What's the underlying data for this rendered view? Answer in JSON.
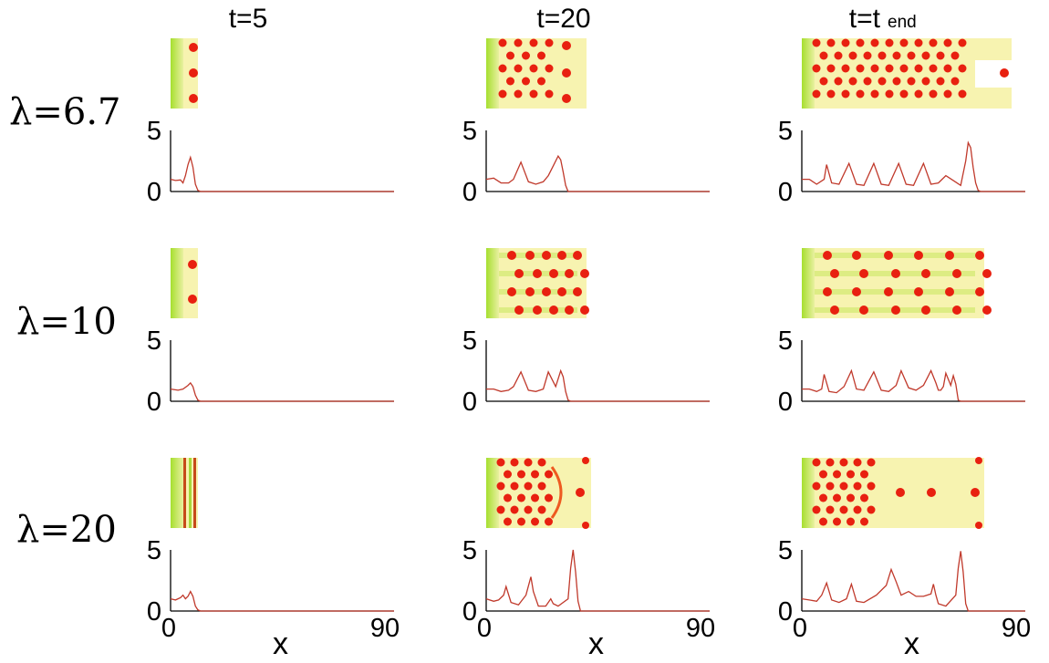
{
  "figure": {
    "column_titles": [
      {
        "text": "t=5"
      },
      {
        "text": "t=20"
      },
      {
        "text": "t=t",
        "subscript": "end"
      }
    ],
    "row_labels": [
      "λ=6.7",
      "λ=10",
      "λ=20"
    ],
    "colors": {
      "background": "#b8e84a",
      "field": "#f7f3b0",
      "spot": "#e82010",
      "curve": "#c0392b",
      "axis": "#000000"
    }
  },
  "chart_data": [
    {
      "type": "line",
      "row": "λ=6.7",
      "column": "t=5",
      "ylim": [
        0,
        5
      ],
      "yticks": [
        "0",
        "5"
      ],
      "xlim": [
        0,
        90
      ],
      "xticks": [],
      "x": [
        0,
        2,
        4,
        5,
        6,
        7,
        8,
        9,
        10,
        11,
        12,
        90
      ],
      "y": [
        1,
        0.9,
        0.95,
        0.7,
        1.3,
        2.2,
        2.8,
        2.0,
        0.6,
        0.1,
        0,
        0
      ]
    },
    {
      "type": "line",
      "row": "λ=6.7",
      "column": "t=20",
      "ylim": [
        0,
        5
      ],
      "yticks": [
        "0",
        "5"
      ],
      "xlim": [
        0,
        90
      ],
      "xticks": [],
      "x": [
        0,
        3,
        6,
        9,
        11,
        14,
        17,
        20,
        23,
        25,
        27,
        29,
        30,
        31,
        32,
        33,
        90
      ],
      "y": [
        1,
        1.1,
        0.7,
        0.7,
        1.0,
        2.4,
        0.8,
        0.6,
        0.8,
        1.3,
        2.1,
        2.9,
        2.6,
        1.6,
        0.5,
        0,
        0
      ]
    },
    {
      "type": "line",
      "row": "λ=6.7",
      "column": "t=t end",
      "ylim": [
        0,
        5
      ],
      "yticks": [
        "0",
        "5"
      ],
      "xlim": [
        0,
        90
      ],
      "xticks": [],
      "x": [
        0,
        3,
        6,
        9,
        10,
        12,
        15,
        19,
        22,
        25,
        29,
        32,
        35,
        39,
        42,
        45,
        49,
        52,
        55,
        58,
        61,
        64,
        66,
        67,
        68,
        69,
        70,
        71,
        72,
        90
      ],
      "y": [
        1,
        1.0,
        0.6,
        1.0,
        2.2,
        0.7,
        0.6,
        2.3,
        0.6,
        0.5,
        2.3,
        0.6,
        0.5,
        2.3,
        0.6,
        0.5,
        2.3,
        0.6,
        0.7,
        1.3,
        0.9,
        0.5,
        2.5,
        4.0,
        3.6,
        2.0,
        0.7,
        0.1,
        0,
        0
      ]
    },
    {
      "type": "line",
      "row": "λ=10",
      "column": "t=5",
      "ylim": [
        0,
        5
      ],
      "yticks": [
        "0",
        "5"
      ],
      "xlim": [
        0,
        90
      ],
      "xticks": [],
      "x": [
        0,
        3,
        5,
        7,
        8,
        9,
        10,
        11,
        12,
        90
      ],
      "y": [
        1,
        0.9,
        1.0,
        1.3,
        1.5,
        1.2,
        0.5,
        0.1,
        0,
        0
      ]
    },
    {
      "type": "line",
      "row": "λ=10",
      "column": "t=20",
      "ylim": [
        0,
        5
      ],
      "yticks": [
        "0",
        "5"
      ],
      "xlim": [
        0,
        90
      ],
      "xticks": [],
      "x": [
        0,
        3,
        6,
        9,
        11,
        14,
        17,
        20,
        23,
        25,
        26,
        28,
        30,
        31,
        32,
        33,
        34,
        90
      ],
      "y": [
        1,
        1.0,
        0.8,
        0.9,
        1.2,
        2.4,
        0.9,
        0.8,
        1.0,
        2.4,
        2.0,
        1.2,
        2.5,
        2.0,
        0.8,
        0.1,
        0,
        0
      ]
    },
    {
      "type": "line",
      "row": "λ=10",
      "column": "t=t end",
      "ylim": [
        0,
        5
      ],
      "yticks": [
        "0",
        "5"
      ],
      "xlim": [
        0,
        90
      ],
      "xticks": [],
      "x": [
        0,
        3,
        6,
        8,
        9,
        11,
        14,
        17,
        20,
        22,
        25,
        29,
        32,
        35,
        38,
        40,
        43,
        46,
        49,
        52,
        54,
        55,
        56,
        57,
        58,
        59,
        60,
        61,
        62,
        63,
        64,
        90
      ],
      "y": [
        1,
        1.0,
        0.8,
        1.0,
        2.2,
        0.8,
        0.7,
        1.2,
        2.5,
        1.0,
        0.9,
        2.4,
        0.9,
        0.8,
        1.3,
        2.5,
        1.1,
        0.9,
        1.3,
        2.5,
        1.5,
        0.9,
        0.9,
        1.2,
        2.3,
        1.8,
        1.3,
        2.1,
        1.4,
        0.1,
        0,
        0
      ]
    },
    {
      "type": "line",
      "row": "λ=20",
      "column": "t=5",
      "ylim": [
        0,
        5
      ],
      "yticks": [
        "0",
        "5"
      ],
      "xlim": [
        0,
        90
      ],
      "xticks": [
        "0",
        "90"
      ],
      "xlabel": "x",
      "x": [
        0,
        2,
        4,
        5,
        6,
        7,
        8,
        9,
        10,
        11,
        12,
        90
      ],
      "y": [
        1,
        0.9,
        1.1,
        1.3,
        1.0,
        1.2,
        1.6,
        1.2,
        0.4,
        0.1,
        0,
        0
      ]
    },
    {
      "type": "line",
      "row": "λ=20",
      "column": "t=20",
      "ylim": [
        0,
        5
      ],
      "yticks": [
        "0",
        "5"
      ],
      "xlim": [
        0,
        90
      ],
      "xticks": [
        "0",
        "90"
      ],
      "xlabel": "x",
      "x": [
        0,
        3,
        5,
        7,
        8,
        10,
        13,
        16,
        18,
        19,
        21,
        24,
        26,
        27,
        29,
        33,
        34,
        35,
        36,
        37,
        38,
        90
      ],
      "y": [
        1,
        0.8,
        0.9,
        1.3,
        2.0,
        0.7,
        0.5,
        1.3,
        2.8,
        1.6,
        0.4,
        0.4,
        1.0,
        0.6,
        0.4,
        1.0,
        3.5,
        5.0,
        3.2,
        0.8,
        0,
        0
      ]
    },
    {
      "type": "line",
      "row": "λ=20",
      "column": "t=t end",
      "ylim": [
        0,
        5
      ],
      "yticks": [
        "0",
        "5"
      ],
      "xlim": [
        0,
        90
      ],
      "xticks": [
        "0",
        "90"
      ],
      "xlabel": "x",
      "x": [
        0,
        3,
        6,
        8,
        10,
        12,
        15,
        18,
        20,
        22,
        25,
        30,
        34,
        36,
        38,
        40,
        43,
        46,
        49,
        52,
        53,
        54,
        55,
        58,
        62,
        63,
        64,
        65,
        66,
        67,
        90
      ],
      "y": [
        1,
        0.9,
        0.8,
        1.3,
        2.3,
        0.9,
        0.7,
        1.0,
        2.2,
        0.8,
        0.7,
        1.3,
        2.1,
        3.4,
        2.4,
        1.3,
        1.6,
        1.2,
        1.2,
        1.4,
        2.2,
        1.3,
        0.6,
        0.4,
        1.3,
        3.5,
        4.9,
        3.2,
        0.6,
        0,
        0
      ]
    }
  ]
}
